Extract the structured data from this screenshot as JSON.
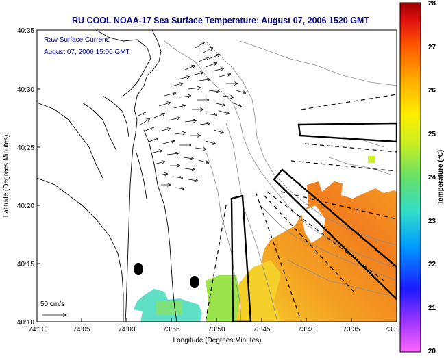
{
  "title": "RU COOL  NOAA-17  Sea Surface Temperature:  August 07, 2006 1520 GMT",
  "inset_line1": "Raw Surface Current:",
  "inset_line2": "August 07, 2006 15:00 GMT",
  "scale_label": "50 cm/s",
  "xlabel": "Longitude (Degrees:Minutes)",
  "ylabel": "Latitude (Degrees:Minutes)",
  "colorbar_label": "Temperature (°C)",
  "x_ticks": [
    "74:10",
    "74:05",
    "74:00",
    "73:55",
    "73:50",
    "73:45",
    "73:40",
    "73:35",
    "73:3"
  ],
  "y_ticks": [
    "40:35",
    "40:30",
    "40:25",
    "40:20",
    "40:15",
    "40:10"
  ],
  "colorbar_ticks": [
    "28",
    "27",
    "26",
    "25",
    "24",
    "23",
    "22",
    "21",
    "20"
  ],
  "colors": {
    "title": "#0a0a8c",
    "sst_warm": "#f27a1e",
    "sst_mid": "#f5b522",
    "sst_cool": "#7ee05a",
    "sst_cold": "#58e0d0",
    "land_contour": "#888888"
  },
  "chart_data": {
    "type": "heatmap",
    "title": "RU COOL  NOAA-17  Sea Surface Temperature:  August 07, 2006 1520 GMT",
    "xlabel": "Longitude (Degrees:Minutes)",
    "ylabel": "Latitude (Degrees:Minutes)",
    "xlim": [
      "74:10",
      "73:3"
    ],
    "ylim": [
      "40:10",
      "40:35"
    ],
    "colorbar": {
      "label": "Temperature (°C)",
      "range": [
        20,
        28
      ]
    },
    "vector_field": "Raw Surface Current: August 07, 2006 15:00 GMT",
    "vector_scale": "50 cm/s"
  }
}
